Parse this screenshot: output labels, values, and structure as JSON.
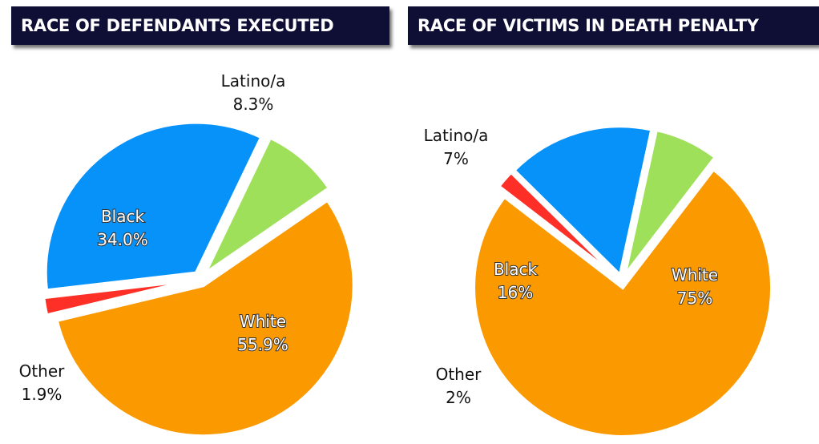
{
  "chart_data": [
    {
      "type": "pie",
      "title": "RACE OF DEFENDANTS EXECUTED",
      "slices": [
        {
          "label": "White",
          "value": 55.9,
          "display": "55.9%",
          "color": "#fb9900",
          "label_inside": true
        },
        {
          "label": "Other",
          "value": 1.9,
          "display": "1.9%",
          "color": "#fd2f26",
          "label_inside": false
        },
        {
          "label": "Black",
          "value": 34.0,
          "display": "34.0%",
          "color": "#0792fa",
          "label_inside": true
        },
        {
          "label": "Latino/a",
          "value": 8.3,
          "display": "8.3%",
          "color": "#9fe05a",
          "label_inside": false
        }
      ]
    },
    {
      "type": "pie",
      "title": "RACE OF VICTIMS IN DEATH PENALTY",
      "slices": [
        {
          "label": "White",
          "value": 75,
          "display": "75%",
          "color": "#fb9900",
          "label_inside": true
        },
        {
          "label": "Other",
          "value": 2,
          "display": "2%",
          "color": "#fd2f26",
          "label_inside": false
        },
        {
          "label": "Black",
          "value": 16,
          "display": "16%",
          "color": "#0792fa",
          "label_inside": true
        },
        {
          "label": "Latino/a",
          "value": 7,
          "display": "7%",
          "color": "#9fe05a",
          "label_inside": false
        }
      ]
    }
  ]
}
